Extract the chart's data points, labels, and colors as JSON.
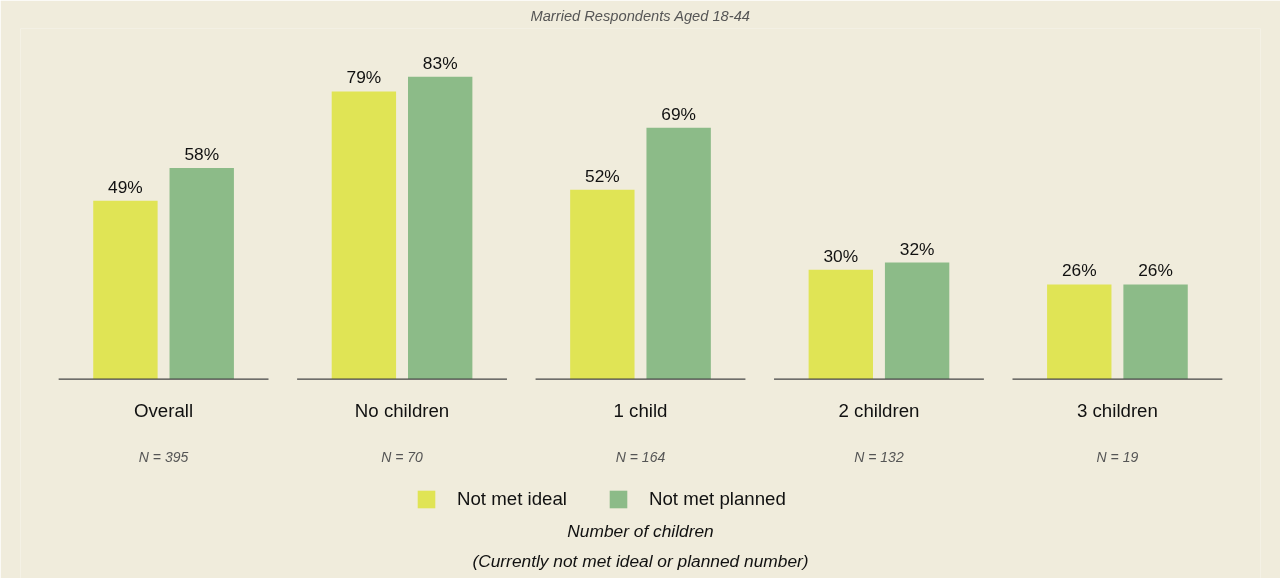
{
  "chart_data": {
    "type": "bar",
    "title": "Married Respondents Aged 18-44",
    "categories": [
      "Overall",
      "No children",
      "1 child",
      "2 children",
      "3 children"
    ],
    "series": [
      {
        "name": "Not met ideal",
        "color": "#e0e455",
        "values": [
          49,
          79,
          52,
          30,
          26
        ],
        "value_labels": [
          "49%",
          "79%",
          "52%",
          "30%",
          "26%"
        ]
      },
      {
        "name": "Not met planned",
        "color": "#8cbb88",
        "values": [
          58,
          83,
          69,
          32,
          26
        ],
        "value_labels": [
          "58%",
          "83%",
          "69%",
          "32%",
          "26%"
        ]
      }
    ],
    "legend": "bottom",
    "annotations": [
      "N = 395",
      "N = 70",
      "N = 164",
      "N = 132",
      "N = 19",
      "Number of children\n(Currently not met ideal or planned number)"
    ]
  }
}
